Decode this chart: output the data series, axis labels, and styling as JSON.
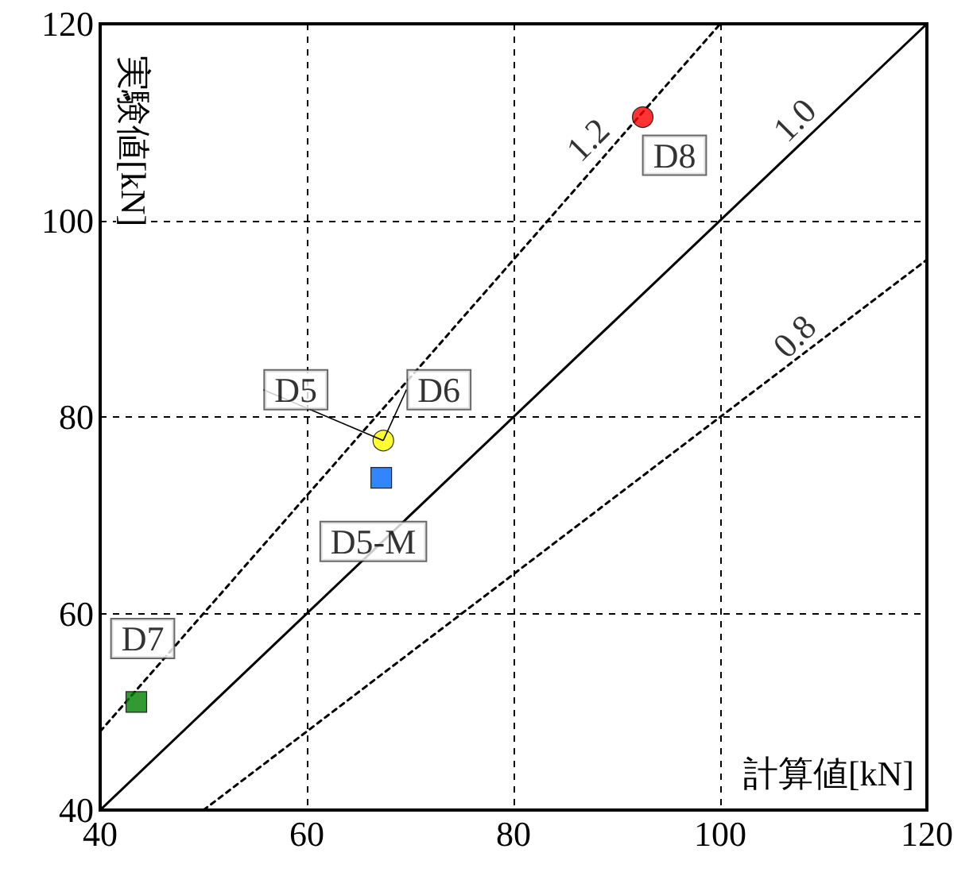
{
  "chart_data": {
    "type": "scatter",
    "xlabel": "計算値[kN]",
    "ylabel": "実験値[kN]",
    "xlim": [
      40,
      120
    ],
    "xticks": [
      40,
      60,
      80,
      100,
      120
    ],
    "ylim": [
      40,
      120
    ],
    "yticks": [
      40,
      60,
      80,
      100,
      120
    ],
    "grid": true,
    "series": [
      {
        "type": "line",
        "x": [
          40,
          100
        ],
        "values": [
          48,
          120
        ],
        "color": "#000000",
        "line_style": "dotted",
        "marker": "none"
      },
      {
        "type": "line",
        "x": [
          40,
          120
        ],
        "values": [
          40,
          120
        ],
        "color": "#000000",
        "line_style": "solid",
        "marker": "none"
      },
      {
        "type": "line",
        "x": [
          50,
          120
        ],
        "values": [
          40,
          96
        ],
        "color": "#000000",
        "line_style": "dotted",
        "marker": "none"
      },
      {
        "x": [
          92.5
        ],
        "values": [
          110.5
        ],
        "color": "#ff0000",
        "marker": "circle"
      },
      {
        "x": [
          67.4
        ],
        "values": [
          77.6
        ],
        "color": "#ffff00",
        "marker": "circle"
      },
      {
        "x": [
          67.2
        ],
        "values": [
          73.8
        ],
        "color": "#0066ff",
        "marker": "square"
      },
      {
        "x": [
          43.5
        ],
        "values": [
          51
        ],
        "color": "#008000",
        "marker": "square"
      }
    ],
    "annotations": [
      {
        "text": "1.2",
        "x": 90,
        "y": 108
      },
      {
        "text": "1.0",
        "x": 110,
        "y": 110
      },
      {
        "text": "0.8",
        "x": 110,
        "y": 88
      },
      {
        "text": "D8",
        "x": 92.5,
        "y": 110.5
      },
      {
        "text": "D5",
        "x": 67.4,
        "y": 77.6
      },
      {
        "text": "D6",
        "x": 67.4,
        "y": 77.6
      },
      {
        "text": "D5-M",
        "x": 67.2,
        "y": 73.8
      },
      {
        "text": "D7",
        "x": 43.5,
        "y": 51
      }
    ]
  }
}
